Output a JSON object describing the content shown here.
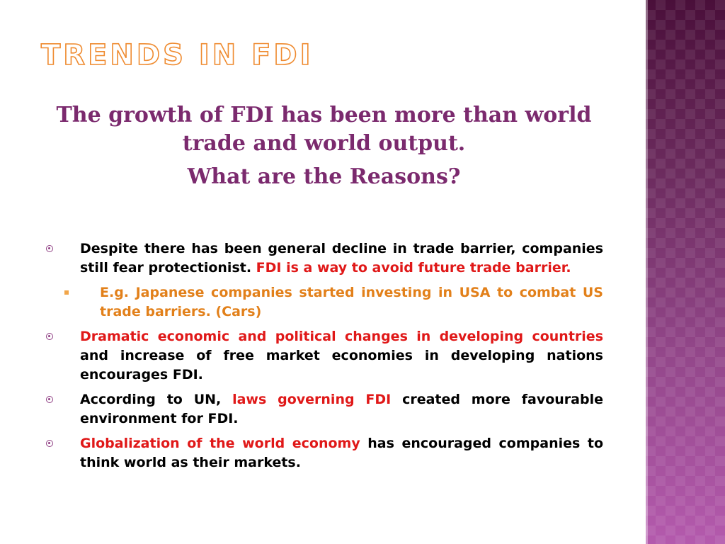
{
  "slide": {
    "title": "TRENDS IN FDI",
    "subtitle": {
      "line1": "The growth of FDI has been more than world trade and world output.",
      "line2": "What are the Reasons?"
    },
    "bullets": [
      {
        "text_a": "Despite there has been general decline in trade barrier, companies still fear protectionist. ",
        "highlight_a": "FDI is a way to avoid future trade barrier."
      },
      {
        "sub_text": "E.g. Japanese companies started investing in USA to combat US trade barriers. (Cars)"
      },
      {
        "highlight_a": "Dramatic economic and political changes in developing countries",
        "text_b": " and increase of free market economies in developing nations encourages FDI."
      },
      {
        "text_a": "According to UN, ",
        "highlight_a": "laws governing FDI",
        "text_b": " created more favourable environment for FDI."
      },
      {
        "highlight_a": "Globalization of the world economy",
        "text_b": " has encouraged companies to think world as their markets."
      }
    ],
    "colors": {
      "title_outline": "#ef8b30",
      "subtitle": "#7b2a6e",
      "highlight": "#e01818",
      "sub_bullet": "#e2801a",
      "bullet_marker": "#8e3d82",
      "side_panel_top": "#4a0f3a",
      "side_panel_bottom": "#b45aad"
    },
    "icons": {
      "bullet": "circle-bullet-icon",
      "sub_bullet": "square-bullet-icon"
    }
  }
}
